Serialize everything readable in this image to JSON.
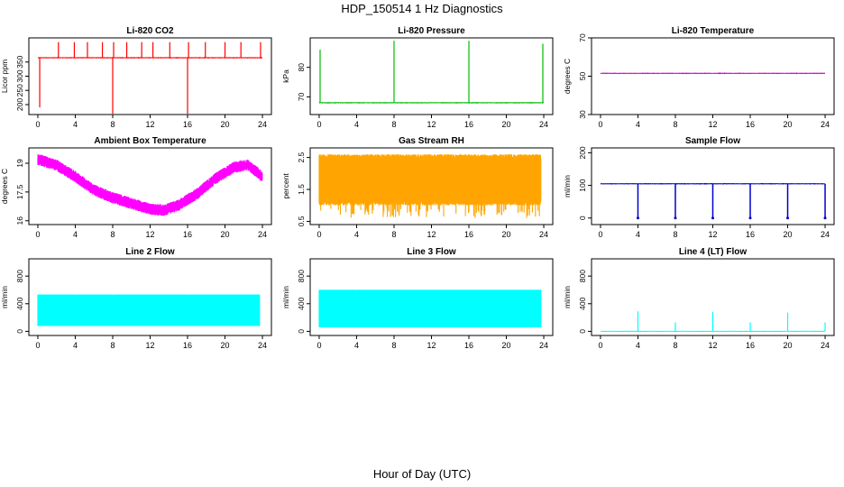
{
  "page": {
    "title": "HDP_150514  1 Hz Diagnostics",
    "xlabel": "Hour of Day (UTC)"
  },
  "chart_data": [
    {
      "type": "line",
      "title": "Li-820 CO2",
      "ylabel": "Licor ppm",
      "color": "#ff0000",
      "xlim": [
        0,
        24
      ],
      "xticks": [
        0,
        4,
        8,
        12,
        16,
        20,
        24
      ],
      "ylim": [
        165,
        435
      ],
      "yticks": [
        200,
        250,
        300,
        350
      ],
      "baseline": 365,
      "spikes": [
        {
          "x": 0.2,
          "y": 190
        },
        {
          "x": 2.2,
          "y": 420
        },
        {
          "x": 3.9,
          "y": 420
        },
        {
          "x": 5.3,
          "y": 420
        },
        {
          "x": 6.9,
          "y": 420
        },
        {
          "x": 8.0,
          "y": 168
        },
        {
          "x": 8.1,
          "y": 420
        },
        {
          "x": 9.5,
          "y": 420
        },
        {
          "x": 11.1,
          "y": 420
        },
        {
          "x": 12.3,
          "y": 420
        },
        {
          "x": 14.1,
          "y": 420
        },
        {
          "x": 16.0,
          "y": 168
        },
        {
          "x": 16.1,
          "y": 420
        },
        {
          "x": 17.9,
          "y": 420
        },
        {
          "x": 20.0,
          "y": 420
        },
        {
          "x": 21.7,
          "y": 420
        },
        {
          "x": 23.8,
          "y": 420
        }
      ]
    },
    {
      "type": "line",
      "title": "Li-820 Pressure",
      "ylabel": "kPa",
      "color": "#00bb00",
      "xlim": [
        0,
        24
      ],
      "xticks": [
        0,
        4,
        8,
        12,
        16,
        20,
        24
      ],
      "ylim": [
        64,
        90
      ],
      "yticks": [
        70,
        80
      ],
      "baseline": 68,
      "spikes": [
        {
          "x": 0.1,
          "y": 86
        },
        {
          "x": 8.0,
          "y": 89
        },
        {
          "x": 16.0,
          "y": 89
        },
        {
          "x": 23.9,
          "y": 88
        }
      ]
    },
    {
      "type": "line",
      "title": "Li-820 Temperature",
      "ylabel": "degrees C",
      "color": "#cc00cc",
      "xlim": [
        0,
        24
      ],
      "xticks": [
        0,
        4,
        8,
        12,
        16,
        20,
        24
      ],
      "ylim": [
        30,
        70
      ],
      "yticks": [
        30,
        50,
        70
      ],
      "baseline": 51.5,
      "spikes": []
    },
    {
      "type": "area",
      "title": "Ambient Box Temperature",
      "ylabel": "degrees C",
      "color": "#ff00ff",
      "xlim": [
        0,
        24
      ],
      "xticks": [
        0,
        4,
        8,
        12,
        16,
        20,
        24
      ],
      "ylim": [
        15.8,
        19.8
      ],
      "yticks": [
        16.0,
        17.5,
        19.0
      ],
      "mean_curve": {
        "x": [
          0,
          2,
          4,
          6,
          8,
          10,
          12,
          13.5,
          15,
          17,
          19,
          21,
          22.5,
          24
        ],
        "y": [
          19.2,
          18.9,
          18.3,
          17.6,
          17.2,
          16.9,
          16.6,
          16.55,
          16.8,
          17.4,
          18.2,
          18.8,
          18.9,
          18.3
        ]
      },
      "band_halfwidth": 0.3
    },
    {
      "type": "area",
      "title": "Gas Stream RH",
      "ylabel": "percent",
      "color": "#ffa500",
      "xlim": [
        0,
        24
      ],
      "xticks": [
        0,
        4,
        8,
        12,
        16,
        20,
        24
      ],
      "ylim": [
        0.4,
        2.8
      ],
      "yticks": [
        0.5,
        1.5,
        2.5
      ],
      "band": {
        "upper": 2.6,
        "lower": 1.1,
        "dip_min": 0.6
      }
    },
    {
      "type": "line",
      "title": "Sample Flow",
      "ylabel": "ml/min",
      "color": "#0000cc",
      "xlim": [
        0,
        24
      ],
      "xticks": [
        0,
        4,
        8,
        12,
        16,
        20,
        24
      ],
      "ylim": [
        -20,
        215
      ],
      "yticks": [
        0,
        100,
        200
      ],
      "baseline": 105,
      "dips": [
        {
          "x": 4.0,
          "y": 0
        },
        {
          "x": 8.0,
          "y": 0
        },
        {
          "x": 12.0,
          "y": 0
        },
        {
          "x": 16.0,
          "y": 0
        },
        {
          "x": 20.0,
          "y": 0
        },
        {
          "x": 24.0,
          "y": 0
        }
      ]
    },
    {
      "type": "area",
      "title": "Line 2 Flow",
      "ylabel": "ml/min",
      "color": "#00ffff",
      "xlim": [
        0,
        24
      ],
      "xticks": [
        0,
        4,
        8,
        12,
        16,
        20,
        24
      ],
      "ylim": [
        -60,
        1050
      ],
      "yticks": [
        0,
        400,
        800
      ],
      "band": {
        "upper": 530,
        "lower": 80
      },
      "gaps": [
        4.0,
        8.0,
        12.0,
        16.0,
        20.0
      ]
    },
    {
      "type": "area",
      "title": "Line 3 Flow",
      "ylabel": "ml/min",
      "color": "#00ffff",
      "xlim": [
        0,
        24
      ],
      "xticks": [
        0,
        4,
        8,
        12,
        16,
        20,
        24
      ],
      "ylim": [
        -60,
        1050
      ],
      "yticks": [
        0,
        400,
        800
      ],
      "band": {
        "upper": 600,
        "lower": 60
      },
      "gaps": [
        4.0,
        8.0,
        12.0,
        16.0,
        20.0
      ]
    },
    {
      "type": "line",
      "title": "Line 4 (LT) Flow",
      "ylabel": "ml/min",
      "color": "#00ffff",
      "xlim": [
        0,
        24
      ],
      "xticks": [
        0,
        4,
        8,
        12,
        16,
        20,
        24
      ],
      "ylim": [
        -60,
        1050
      ],
      "yticks": [
        0,
        400,
        800
      ],
      "baseline": 0,
      "spikes": [
        {
          "x": 4.0,
          "y": 290
        },
        {
          "x": 8.0,
          "y": 130
        },
        {
          "x": 12.0,
          "y": 280
        },
        {
          "x": 16.0,
          "y": 130
        },
        {
          "x": 20.0,
          "y": 270
        },
        {
          "x": 24.0,
          "y": 130
        }
      ]
    }
  ]
}
